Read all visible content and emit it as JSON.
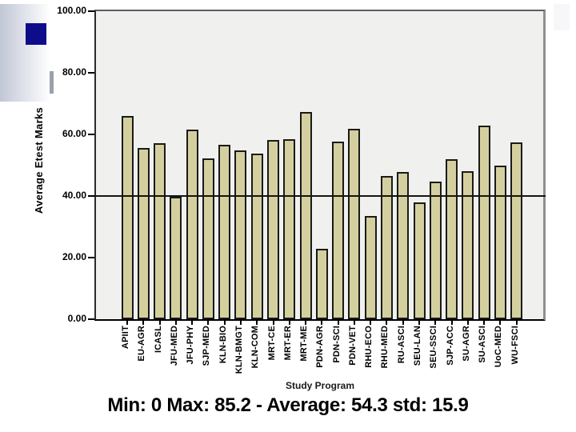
{
  "slide": {
    "decor": {
      "gradient_from": "#c2c7d5",
      "gradient_to": "#ffffff",
      "square_color": "#0d0d8a",
      "tick_color": "#9aa0ae",
      "corner_box_color": "#f7f7fa"
    }
  },
  "chart_data": {
    "type": "bar",
    "title": "",
    "xlabel": "Study Program",
    "ylabel": "Average Etest Marks",
    "categories": [
      "APIIT",
      "EU-AGR",
      "ICASL",
      "JFU-MED",
      "JFU-PHY",
      "SJP-MED",
      "KLN-BIO",
      "KLN-BMGT",
      "KLN-COM",
      "MRT-CE",
      "MRT-ER",
      "MRT-ME",
      "PDN-AGR",
      "PDN-SCI",
      "PDN-VET",
      "RHU-ECO",
      "RHU-MED",
      "RU-ASCI",
      "SEU-LAN",
      "SEU-SSCI",
      "SJP-ACC",
      "SU-AGR",
      "SU-ASCI",
      "UoC-MED",
      "WU-FSCI"
    ],
    "values": [
      65.9,
      55.5,
      57.1,
      39.8,
      61.5,
      52.2,
      56.6,
      54.9,
      53.8,
      58.3,
      58.5,
      67.4,
      22.9,
      57.7,
      61.7,
      33.4,
      46.4,
      47.7,
      37.9,
      44.8,
      51.9,
      48.1,
      62.8,
      49.8,
      57.4
    ],
    "ylim": [
      0,
      100
    ],
    "yticks": [
      {
        "v": 0,
        "label": "0.00"
      },
      {
        "v": 20,
        "label": "20.00"
      },
      {
        "v": 40,
        "label": "40.00"
      },
      {
        "v": 60,
        "label": "60.00"
      },
      {
        "v": 80,
        "label": "80.00"
      },
      {
        "v": 100,
        "label": "100.00"
      }
    ],
    "reference_line_y": 40,
    "grid": false,
    "legend": false,
    "bar_color": "#d4cf9e",
    "bar_border_color": "#1a1a1a",
    "refline_color": "#141414",
    "plot_bg": "#f0f0ee"
  },
  "caption": {
    "text": "Min: 0 Max: 85.2 - Average: 54.3 std: 15.9"
  }
}
